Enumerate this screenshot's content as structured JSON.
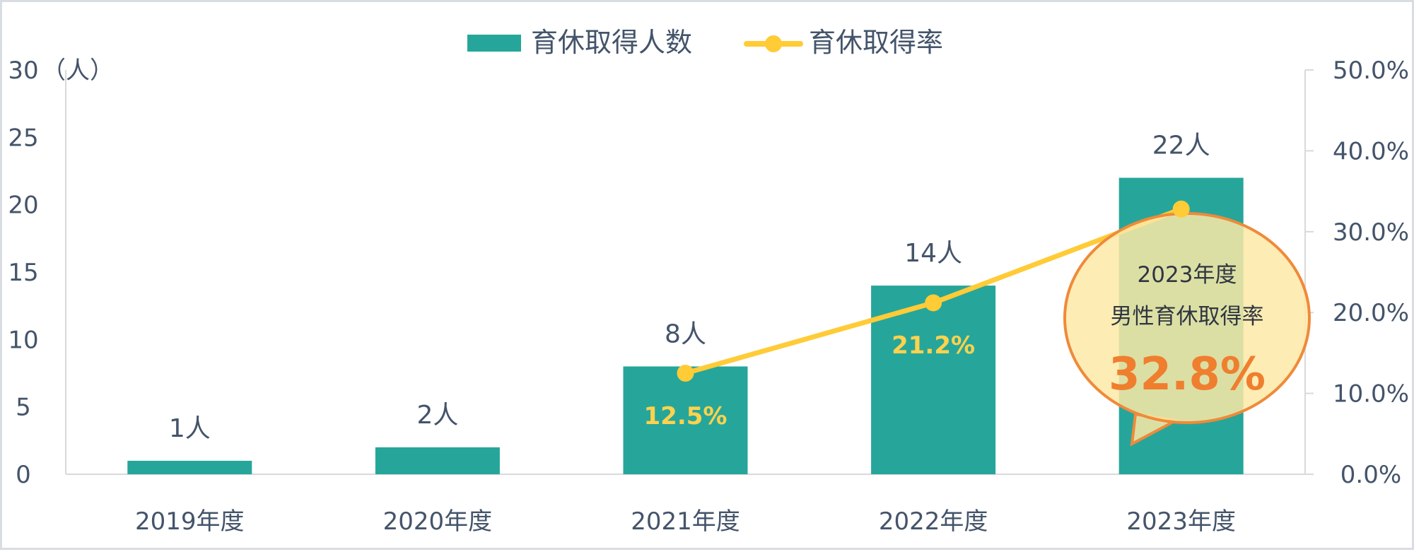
{
  "chart_data": {
    "type": "bar",
    "categories": [
      "2019年度",
      "2020年度",
      "2021年度",
      "2022年度",
      "2023年度"
    ],
    "series": [
      {
        "name": "育休取得人数",
        "type": "bar",
        "axis": "left",
        "values": [
          1,
          2,
          8,
          14,
          22
        ],
        "labels": [
          "1人",
          "2人",
          "8人",
          "14人",
          "22人"
        ],
        "color": "#26a69a"
      },
      {
        "name": "育休取得率",
        "type": "line",
        "axis": "right",
        "values": [
          null,
          null,
          12.5,
          21.2,
          32.8
        ],
        "labels": [
          "",
          "",
          "12.5%",
          "21.2%",
          ""
        ],
        "color": "#ffcb37"
      }
    ],
    "y_left": {
      "unit_label": "（人）",
      "min": 0,
      "max": 30,
      "step": 5,
      "ticks": [
        "0",
        "5",
        "10",
        "15",
        "20",
        "25",
        "30"
      ]
    },
    "y_right": {
      "min": 0,
      "max": 50,
      "step": 10,
      "ticks": [
        "0.0%",
        "10.0%",
        "20.0%",
        "30.0%",
        "40.0%",
        "50.0%"
      ]
    },
    "legend_position": "top-center",
    "grid": false,
    "callout": {
      "line1": "2023年度",
      "line2": "男性育休取得率",
      "value": "32.8%",
      "fill": "#fde9a6",
      "stroke": "#ef8a3a"
    }
  }
}
